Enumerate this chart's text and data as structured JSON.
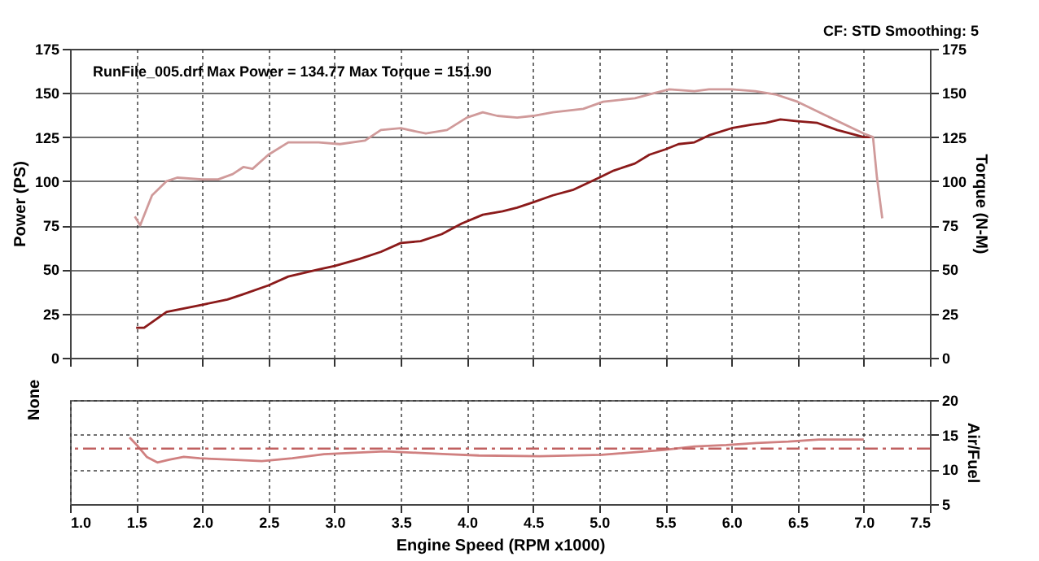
{
  "chart_data": [
    {
      "type": "line",
      "ylabel": "Power (PS)",
      "y2label": "Torque (N-M)",
      "annotations": [
        "RunFile_005.drf Max Power = 134.77 Max Torque = 151.90",
        "CF: STD  Smoothing: 5"
      ],
      "xlim": [
        1.0,
        7.5
      ],
      "xticks": [
        1,
        1.5,
        2,
        2.5,
        3,
        3.5,
        4,
        4.5,
        5,
        5.5,
        6,
        6.5,
        7,
        7.5
      ],
      "ylim": [
        0,
        175
      ],
      "yticks": [
        0,
        25,
        50,
        75,
        100,
        125,
        150,
        175
      ],
      "y2lim": [
        0,
        175
      ],
      "y2ticks": [
        0,
        25,
        50,
        75,
        100,
        125,
        150,
        175
      ],
      "grid": true,
      "tick_labels": "y",
      "marker": "none",
      "line_style": "solid",
      "series": [
        {
          "color": "#8b1a1a",
          "x": [
            1.5,
            1.56,
            1.73,
            2.0,
            2.19,
            2.31,
            2.5,
            2.65,
            2.88,
            3.0,
            3.19,
            3.35,
            3.5,
            3.65,
            3.81,
            3.96,
            4.12,
            4.27,
            4.38,
            4.5,
            4.65,
            4.8,
            5.0,
            5.11,
            5.27,
            5.38,
            5.5,
            5.6,
            5.72,
            5.83,
            6.0,
            6.15,
            6.26,
            6.37,
            6.5,
            6.65,
            6.8,
            7.0,
            7.05
          ],
          "values": [
            17,
            17,
            26,
            30,
            33,
            36,
            41,
            46,
            50,
            52,
            56,
            60,
            65,
            66,
            70,
            76,
            81,
            83,
            85,
            88,
            92,
            95,
            102,
            106,
            110,
            115,
            118,
            121,
            122,
            126,
            130,
            132,
            133,
            135,
            134,
            133,
            129,
            125,
            125
          ]
        },
        {
          "color": "#d09a9a",
          "axis": "y2",
          "x": [
            1.49,
            1.53,
            1.62,
            1.73,
            1.81,
            2.0,
            2.12,
            2.23,
            2.31,
            2.38,
            2.5,
            2.65,
            2.88,
            3.04,
            3.23,
            3.35,
            3.5,
            3.69,
            3.85,
            4.0,
            4.12,
            4.23,
            4.38,
            4.5,
            4.65,
            4.88,
            5.03,
            5.27,
            5.42,
            5.53,
            5.72,
            5.83,
            6.0,
            6.18,
            6.34,
            6.5,
            6.72,
            7.0,
            7.07,
            7.1,
            7.14
          ],
          "values": [
            80,
            75,
            92,
            100,
            102,
            101,
            101,
            104,
            108,
            107,
            115,
            122,
            122,
            121,
            123,
            129,
            130,
            127,
            129,
            136,
            139,
            137,
            136,
            137,
            139,
            141,
            145,
            147,
            150,
            152,
            151,
            152,
            152,
            151,
            149,
            145,
            137,
            127,
            125,
            102,
            79
          ]
        }
      ]
    },
    {
      "type": "line",
      "ylabel": "None",
      "y2label": "Air/Fuel",
      "xlabel": "Engine Speed (RPM x1000)",
      "xlim": [
        1.0,
        7.5
      ],
      "xticks": [
        {
          "value": 1,
          "label": "1.0"
        },
        {
          "value": 1.5,
          "label": "1.5"
        },
        {
          "value": 2,
          "label": "2.0"
        },
        {
          "value": 2.5,
          "label": "2.5"
        },
        {
          "value": 3,
          "label": "3.0"
        },
        {
          "value": 3.5,
          "label": "3.5"
        },
        {
          "value": 4,
          "label": "4.0"
        },
        {
          "value": 4.5,
          "label": "4.5"
        },
        {
          "value": 5,
          "label": "5.0"
        },
        {
          "value": 5.5,
          "label": "5.5"
        },
        {
          "value": 6,
          "label": "6.0"
        },
        {
          "value": 6.5,
          "label": "6.5"
        },
        {
          "value": 7,
          "label": "7.0"
        },
        {
          "value": 7.5,
          "label": "7.5"
        }
      ],
      "y2lim": [
        5,
        20
      ],
      "y2ticks": [
        5,
        10,
        15,
        20
      ],
      "grid": true,
      "marker": "none",
      "line_style": "solid",
      "ref_lines": [
        {
          "axis": "y2",
          "value": 13,
          "color": "#c06060",
          "line_style": "dashdot"
        }
      ],
      "series": [
        {
          "color": "#d08080",
          "axis": "y2",
          "x": [
            1.45,
            1.51,
            1.58,
            1.66,
            1.75,
            1.86,
            1.98,
            2.22,
            2.45,
            2.68,
            2.92,
            3.15,
            3.38,
            3.62,
            3.85,
            4.09,
            4.55,
            5.02,
            5.49,
            5.72,
            5.96,
            6.19,
            6.43,
            6.66,
            7.0
          ],
          "values": [
            14.6,
            13.4,
            11.8,
            11.0,
            11.4,
            11.8,
            11.6,
            11.4,
            11.2,
            11.6,
            12.2,
            12.4,
            12.6,
            12.4,
            12.2,
            12.0,
            11.9,
            12.1,
            12.8,
            13.3,
            13.5,
            13.8,
            14.0,
            14.3,
            14.3
          ]
        }
      ]
    }
  ]
}
